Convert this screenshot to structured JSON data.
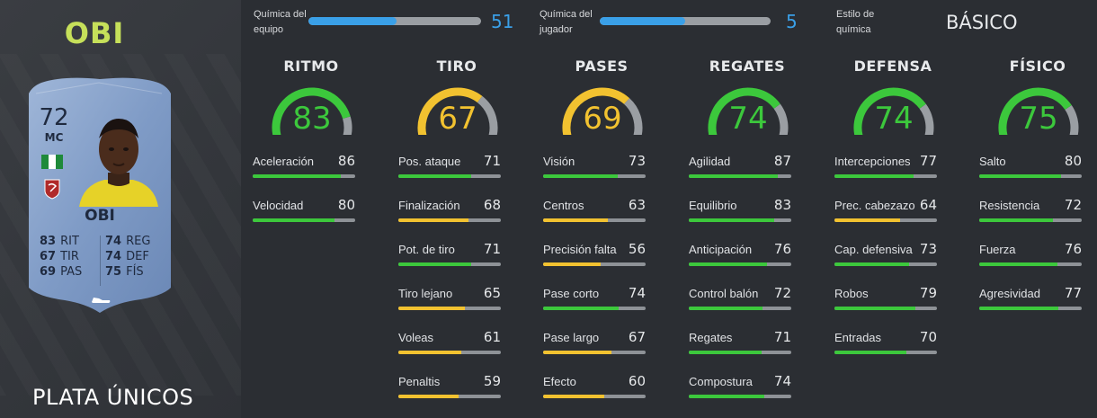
{
  "player": {
    "name": "OBI",
    "rating": "72",
    "position": "MC",
    "version": "PLATA ÚNICOS",
    "card_stats": [
      {
        "value": "83",
        "label": "RIT"
      },
      {
        "value": "74",
        "label": "REG"
      },
      {
        "value": "67",
        "label": "TIR"
      },
      {
        "value": "74",
        "label": "DEF"
      },
      {
        "value": "69",
        "label": "PAS"
      },
      {
        "value": "75",
        "label": "FÍS"
      }
    ],
    "flag_colors": [
      "#1f8a3a",
      "#ffffff",
      "#1f8a3a"
    ],
    "icons": {
      "flag": "nigeria-flag-icon",
      "club": "club-crest-icon",
      "boot": "boot-icon"
    }
  },
  "chemistry": {
    "team": {
      "label_line1": "Química del",
      "label_line2": "equipo",
      "value": "51",
      "max": 100,
      "fill_fraction": 0.51
    },
    "player": {
      "label_line1": "Química del",
      "label_line2": "jugador",
      "value": "5",
      "max": 10,
      "fill_fraction": 0.5
    },
    "style": {
      "label_line1": "Estilo de",
      "label_line2": "química",
      "value": "BÁSICO"
    }
  },
  "colors": {
    "green": "#3cc83c",
    "yellow": "#f2c230",
    "blue": "#3aa0e8",
    "gauge_track": "#9a9ea3",
    "name_accent": "#c6e05a"
  },
  "categories": [
    {
      "title": "RITMO",
      "value": 83,
      "color": "green",
      "stats": [
        {
          "name": "Aceleración",
          "value": 86
        },
        {
          "name": "Velocidad",
          "value": 80
        }
      ]
    },
    {
      "title": "TIRO",
      "value": 67,
      "color": "yellow",
      "stats": [
        {
          "name": "Pos. ataque",
          "value": 71
        },
        {
          "name": "Finalización",
          "value": 68
        },
        {
          "name": "Pot. de tiro",
          "value": 71
        },
        {
          "name": "Tiro lejano",
          "value": 65
        },
        {
          "name": "Voleas",
          "value": 61
        },
        {
          "name": "Penaltis",
          "value": 59
        }
      ]
    },
    {
      "title": "PASES",
      "value": 69,
      "color": "yellow",
      "stats": [
        {
          "name": "Visión",
          "value": 73
        },
        {
          "name": "Centros",
          "value": 63
        },
        {
          "name": "Precisión falta",
          "value": 56
        },
        {
          "name": "Pase corto",
          "value": 74
        },
        {
          "name": "Pase largo",
          "value": 67
        },
        {
          "name": "Efecto",
          "value": 60
        }
      ]
    },
    {
      "title": "REGATES",
      "value": 74,
      "color": "green",
      "stats": [
        {
          "name": "Agilidad",
          "value": 87
        },
        {
          "name": "Equilibrio",
          "value": 83
        },
        {
          "name": "Anticipación",
          "value": 76
        },
        {
          "name": "Control balón",
          "value": 72
        },
        {
          "name": "Regates",
          "value": 71
        },
        {
          "name": "Compostura",
          "value": 74
        }
      ]
    },
    {
      "title": "DEFENSA",
      "value": 74,
      "color": "green",
      "stats": [
        {
          "name": "Intercepciones",
          "value": 77
        },
        {
          "name": "Prec. cabezazo",
          "value": 64
        },
        {
          "name": "Cap. defensiva",
          "value": 73
        },
        {
          "name": "Robos",
          "value": 79
        },
        {
          "name": "Entradas",
          "value": 70
        }
      ]
    },
    {
      "title": "FÍSICO",
      "value": 75,
      "color": "green",
      "stats": [
        {
          "name": "Salto",
          "value": 80
        },
        {
          "name": "Resistencia",
          "value": 72
        },
        {
          "name": "Fuerza",
          "value": 76
        },
        {
          "name": "Agresividad",
          "value": 77
        }
      ]
    }
  ]
}
